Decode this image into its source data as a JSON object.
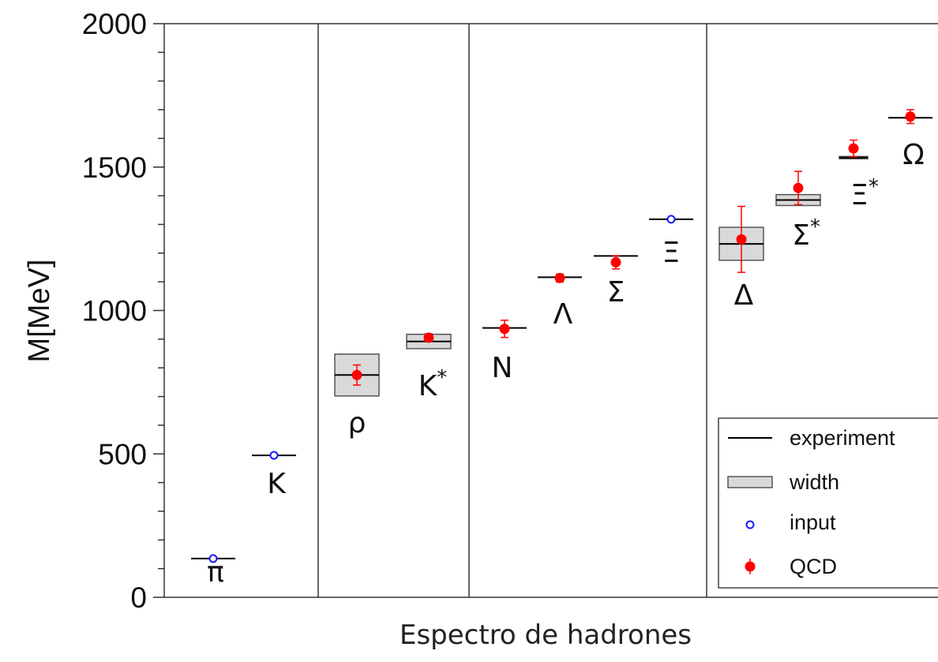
{
  "chart_data": {
    "type": "scatter",
    "title": "",
    "xlabel": "Espectro de hadrones",
    "ylabel": "M[MeV]",
    "ylim": [
      0,
      2000
    ],
    "yticks": [
      "0",
      "500",
      "1000",
      "1500",
      "2000"
    ],
    "grid": false,
    "legend_position": "bottom-right",
    "colors": {
      "input": "#1a1aff",
      "qcd": "#ff0000",
      "width_fill": "#d9d9d9",
      "line": "#000000"
    },
    "legend": [
      {
        "key": "experiment",
        "label": "experiment"
      },
      {
        "key": "width",
        "label": "width"
      },
      {
        "key": "input",
        "label": "input"
      },
      {
        "key": "qcd",
        "label": "QCD"
      }
    ],
    "groups": [
      {
        "particles": [
          "π",
          "K"
        ]
      },
      {
        "particles": [
          "ρ",
          "K*"
        ]
      },
      {
        "particles": [
          "N",
          "Λ",
          "Σ",
          "Ξ"
        ]
      },
      {
        "particles": [
          "Δ",
          "Σ*",
          "Ξ*",
          "Ω"
        ]
      }
    ],
    "particles": [
      {
        "label": "π",
        "experiment": 135,
        "input": 135
      },
      {
        "label": "K",
        "experiment": 495,
        "input": 495
      },
      {
        "label": "ρ",
        "experiment": 775,
        "width": [
          702,
          848
        ],
        "qcd": 775,
        "err": 35
      },
      {
        "label": "K*",
        "experiment": 892,
        "width": [
          867,
          917
        ],
        "qcd": 905,
        "err": 14
      },
      {
        "label": "N",
        "experiment": 939,
        "qcd": 936,
        "err": 30
      },
      {
        "label": "Λ",
        "experiment": 1116,
        "qcd": 1113,
        "err": 14
      },
      {
        "label": "Σ",
        "experiment": 1190,
        "qcd": 1168,
        "err": 23
      },
      {
        "label": "Ξ",
        "experiment": 1318,
        "input": 1318
      },
      {
        "label": "Δ",
        "experiment": 1232,
        "width": [
          1175,
          1290
        ],
        "qcd": 1248,
        "err": 115
      },
      {
        "label": "Σ*",
        "experiment": 1385,
        "width": [
          1366,
          1404
        ],
        "qcd": 1427,
        "err": 58
      },
      {
        "label": "Ξ*",
        "experiment": 1533,
        "width": [
          1529,
          1537
        ],
        "qcd": 1565,
        "err": 29
      },
      {
        "label": "Ω",
        "experiment": 1672,
        "qcd": 1676,
        "err": 24
      }
    ]
  }
}
